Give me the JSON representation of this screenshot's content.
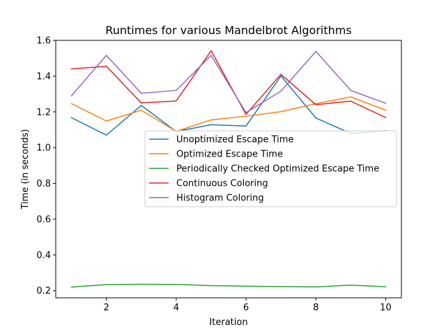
{
  "chart_data": {
    "type": "line",
    "title": "Runtimes for various Mandelbrot Algorithms",
    "xlabel": "Iteration",
    "ylabel": "Time (in seconds)",
    "xlim": [
      0.55,
      10.45
    ],
    "ylim": [
      0.16,
      1.6
    ],
    "xticks": [
      2,
      4,
      6,
      8,
      10
    ],
    "yticks": [
      0.2,
      0.4,
      0.6,
      0.8,
      1.0,
      1.2,
      1.4,
      1.6
    ],
    "xtick_labels": [
      "2",
      "4",
      "6",
      "8",
      "10"
    ],
    "ytick_labels": [
      "0.2",
      "0.4",
      "0.6",
      "0.8",
      "1.0",
      "1.2",
      "1.4",
      "1.6"
    ],
    "grid": false,
    "legend_position": "center-right",
    "x": [
      1,
      2,
      3,
      4,
      5,
      6,
      7,
      8,
      9,
      10
    ],
    "series": [
      {
        "name": "Unoptimized Escape Time",
        "color": "#1f77b4",
        "values": [
          1.168,
          1.07,
          1.236,
          1.09,
          1.128,
          1.121,
          1.401,
          1.166,
          1.079,
          1.095
        ]
      },
      {
        "name": "Optimized Escape Time",
        "color": "#ff7f0e",
        "values": [
          1.246,
          1.149,
          1.209,
          1.091,
          1.155,
          1.176,
          1.201,
          1.246,
          1.284,
          1.209
        ]
      },
      {
        "name": "Periodically Checked Optimized Escape Time",
        "color": "#2ca02c",
        "values": [
          0.22,
          0.234,
          0.236,
          0.235,
          0.228,
          0.225,
          0.223,
          0.221,
          0.231,
          0.222
        ]
      },
      {
        "name": "Continuous Coloring",
        "color": "#d62728",
        "values": [
          1.44,
          1.455,
          1.25,
          1.261,
          1.542,
          1.186,
          1.41,
          1.24,
          1.26,
          1.168
        ]
      },
      {
        "name": "Histogram Coloring",
        "color": "#9467bd",
        "values": [
          1.29,
          1.516,
          1.304,
          1.32,
          1.516,
          1.196,
          1.316,
          1.538,
          1.32,
          1.248
        ]
      }
    ]
  }
}
